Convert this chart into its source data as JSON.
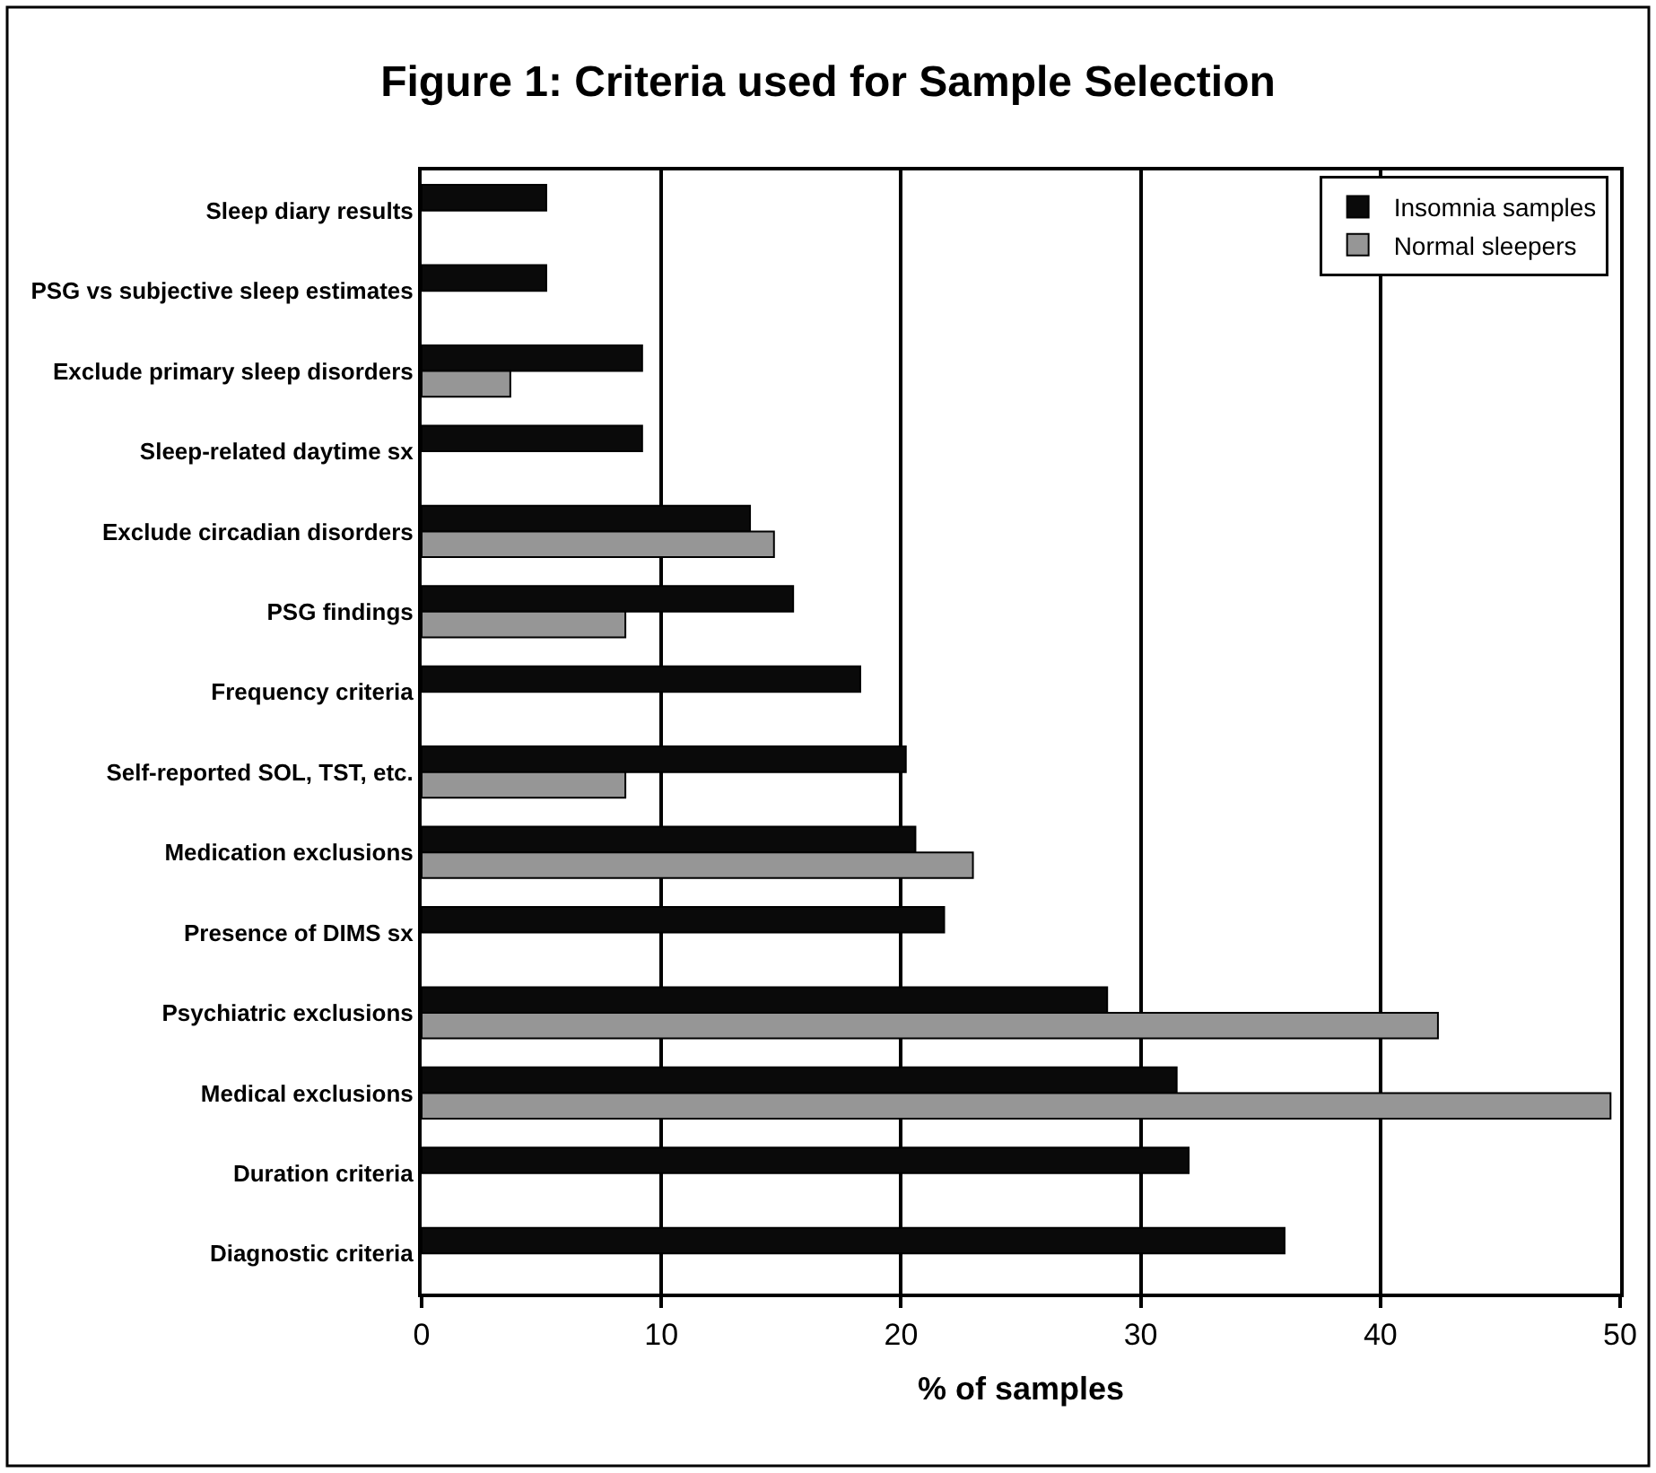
{
  "chart_data": {
    "type": "bar",
    "orientation": "horizontal",
    "title": "Figure 1: Criteria used for Sample Selection",
    "xlabel": "% of samples",
    "categories": [
      "Sleep diary results",
      "PSG vs subjective sleep estimates",
      "Exclude primary sleep disorders",
      "Sleep-related daytime sx",
      "Exclude circadian disorders",
      "PSG findings",
      "Frequency criteria",
      "Self-reported SOL, TST, etc.",
      "Medication exclusions",
      "Presence of DIMS sx",
      "Psychiatric exclusions",
      "Medical exclusions",
      "Duration criteria",
      "Diagnostic criteria"
    ],
    "series": [
      {
        "name": "Insomnia samples",
        "color": "#0a0a0a",
        "values": [
          5.2,
          5.2,
          9.2,
          9.2,
          13.7,
          15.5,
          18.3,
          20.2,
          20.6,
          21.8,
          28.6,
          31.5,
          32.0,
          36.0
        ]
      },
      {
        "name": "Normal sleepers",
        "color": "#969696",
        "values": [
          null,
          null,
          3.7,
          null,
          14.7,
          8.5,
          null,
          8.5,
          23.0,
          null,
          42.4,
          49.6,
          null,
          null
        ]
      }
    ],
    "xlim": [
      0,
      50
    ],
    "xticks": [
      0,
      10,
      20,
      30,
      40,
      50
    ],
    "grid": "x",
    "legend": "top right"
  }
}
